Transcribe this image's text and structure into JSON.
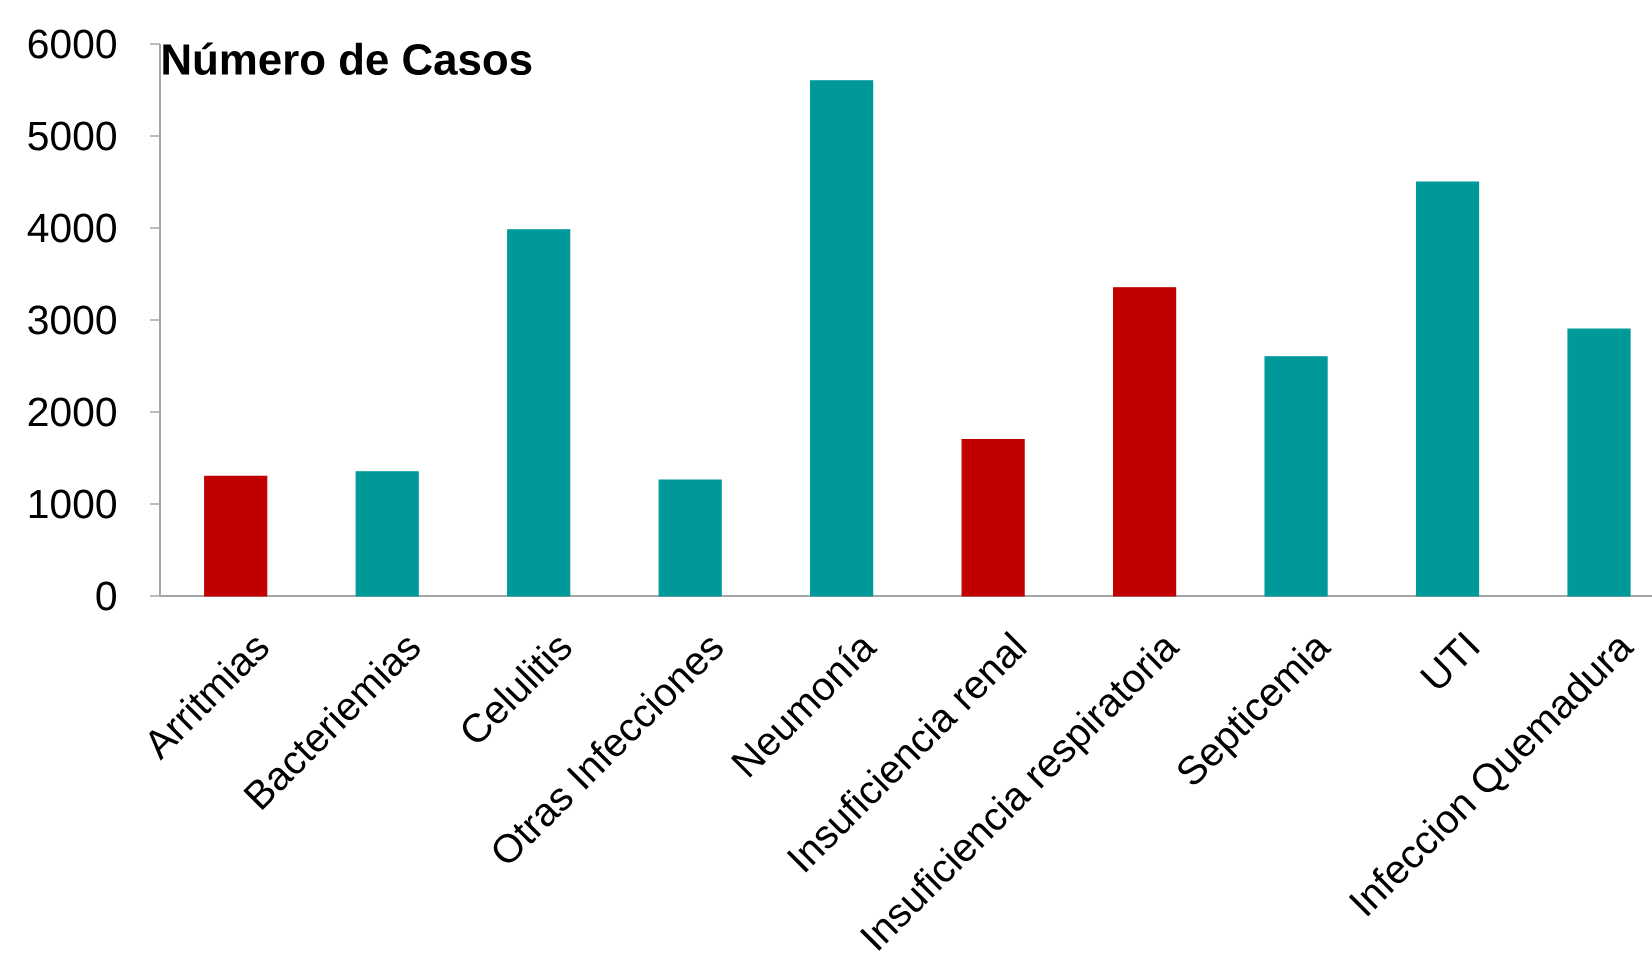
{
  "chart_data": {
    "type": "bar",
    "title": "**Número de Casos**",
    "categories": [
      "Arritmias",
      "Bacteriemias",
      "Celulitis",
      "Otras Infecciones",
      "Neumonía",
      "Insuficiencia renal",
      "Insuficiencia respiratoria",
      "Septicemia",
      "UTI",
      "Infeccion Quemadura"
    ],
    "values": [
      1300,
      1350,
      3980,
      1260,
      5600,
      1700,
      3350,
      2600,
      4500,
      2900
    ],
    "colors": [
      "#c00000",
      "#009999",
      "#009999",
      "#009999",
      "#009999",
      "#c00000",
      "#c00000",
      "#009999",
      "#009999",
      "#009999"
    ],
    "ylim": [
      0,
      6000
    ],
    "yticks": [
      0,
      1000,
      2000,
      3000,
      4000,
      5000,
      6000
    ]
  }
}
